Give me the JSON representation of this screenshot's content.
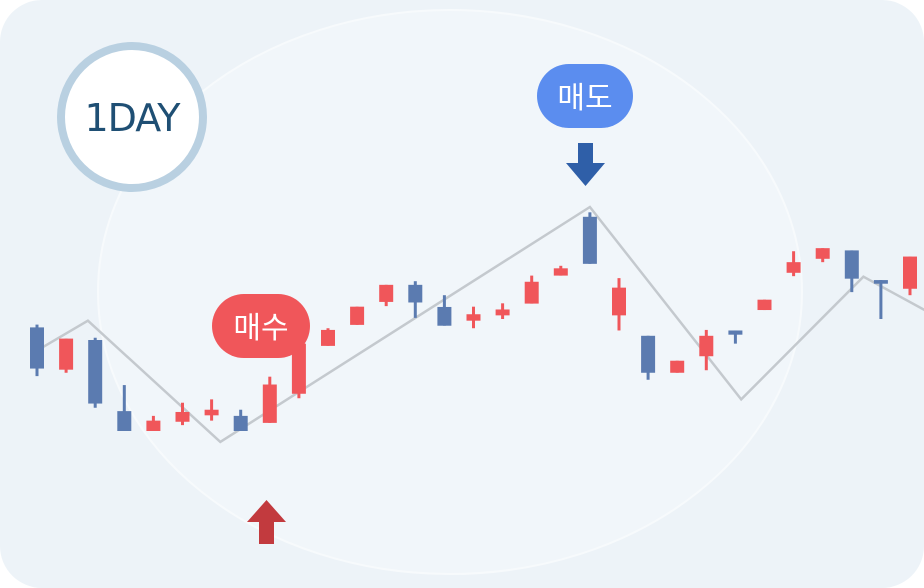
{
  "period_badge": {
    "label": "1DAY",
    "ring_color": "#b9d0e1",
    "text_color": "#1f4f74"
  },
  "buy_signal": {
    "label": "매수",
    "color": "#f0565a",
    "arrow_color": "#c23a3e",
    "direction": "up",
    "at_candle": 8
  },
  "sell_signal": {
    "label": "매도",
    "color": "#5b8def",
    "arrow_color": "#2f5fa8",
    "direction": "down",
    "at_candle": 20
  },
  "chart_data": {
    "type": "candlestick",
    "title": "",
    "xlabel": "",
    "ylabel": "",
    "grid": false,
    "ylim": [
      0,
      100
    ],
    "colors": {
      "up": "#f0565a",
      "down": "#5b7bb0",
      "trend_line": "#c4c9ce",
      "background": "#edf3f8"
    },
    "candles": [
      {
        "direction": "down",
        "open": 57.0,
        "close": 42.3,
        "high": 58.0,
        "low": 39.6
      },
      {
        "direction": "up",
        "open": 41.9,
        "close": 53.0,
        "high": 53.0,
        "low": 40.8
      },
      {
        "direction": "down",
        "open": 52.5,
        "close": 29.8,
        "high": 53.3,
        "low": 28.3
      },
      {
        "direction": "down",
        "open": 27.1,
        "close": 20.0,
        "high": 36.4,
        "low": 20.0
      },
      {
        "direction": "up",
        "open": 20.0,
        "close": 23.7,
        "high": 25.4,
        "low": 20.0
      },
      {
        "direction": "up",
        "open": 23.3,
        "close": 26.8,
        "high": 30.1,
        "low": 22.1
      },
      {
        "direction": "up",
        "open": 25.6,
        "close": 27.6,
        "high": 31.3,
        "low": 23.7
      },
      {
        "direction": "down",
        "open": 25.4,
        "close": 20.0,
        "high": 27.6,
        "low": 20.0
      },
      {
        "direction": "up",
        "open": 22.9,
        "close": 36.6,
        "high": 39.4,
        "low": 22.9
      },
      {
        "direction": "up",
        "open": 33.3,
        "close": 51.2,
        "high": 51.2,
        "low": 31.7
      },
      {
        "direction": "up",
        "open": 50.4,
        "close": 56.1,
        "high": 56.7,
        "low": 50.4
      },
      {
        "direction": "up",
        "open": 57.9,
        "close": 64.4,
        "high": 64.4,
        "low": 57.9
      },
      {
        "direction": "up",
        "open": 66.1,
        "close": 72.2,
        "high": 72.2,
        "low": 64.6
      },
      {
        "direction": "down",
        "open": 72.2,
        "close": 65.9,
        "high": 73.5,
        "low": 60.4
      },
      {
        "direction": "down",
        "open": 64.3,
        "close": 57.6,
        "high": 68.5,
        "low": 57.6
      },
      {
        "direction": "up",
        "open": 59.4,
        "close": 61.7,
        "high": 64.4,
        "low": 56.7
      },
      {
        "direction": "up",
        "open": 61.3,
        "close": 63.4,
        "high": 65.6,
        "low": 60.0
      },
      {
        "direction": "up",
        "open": 65.5,
        "close": 73.3,
        "high": 75.5,
        "low": 65.5
      },
      {
        "direction": "up",
        "open": 75.5,
        "close": 78.1,
        "high": 79.0,
        "low": 75.5
      },
      {
        "direction": "down",
        "open": 96.5,
        "close": 79.7,
        "high": 98.1,
        "low": 79.7
      },
      {
        "direction": "up",
        "open": 61.3,
        "close": 71.2,
        "high": 74.6,
        "low": 55.9
      },
      {
        "direction": "down",
        "open": 54.0,
        "close": 40.8,
        "high": 54.0,
        "low": 38.3
      },
      {
        "direction": "up",
        "open": 40.8,
        "close": 45.1,
        "high": 45.1,
        "low": 40.8
      },
      {
        "direction": "up",
        "open": 46.7,
        "close": 54.0,
        "high": 56.1,
        "low": 41.7
      },
      {
        "direction": "down",
        "open": 55.9,
        "close": 54.4,
        "high": 55.9,
        "low": 51.2
      },
      {
        "direction": "up",
        "open": 63.2,
        "close": 66.9,
        "high": 66.9,
        "low": 63.2
      },
      {
        "direction": "up",
        "open": 76.5,
        "close": 80.3,
        "high": 84.2,
        "low": 75.3
      },
      {
        "direction": "up",
        "open": 81.5,
        "close": 85.3,
        "high": 85.3,
        "low": 80.3
      },
      {
        "direction": "down",
        "open": 84.5,
        "close": 74.4,
        "high": 84.5,
        "low": 69.6
      },
      {
        "direction": "down",
        "open": 73.9,
        "close": 72.6,
        "high": 73.9,
        "low": 60.0
      },
      {
        "direction": "up",
        "open": 70.8,
        "close": 82.3,
        "high": 82.3,
        "low": 68.5
      }
    ],
    "trend_line": {
      "x": [
        0.0,
        1.75,
        6.3,
        19.0,
        24.2,
        28.4,
        31.0
      ],
      "y": [
        48.7,
        59.4,
        16.1,
        100.0,
        31.3,
        75.1,
        60.4
      ]
    }
  }
}
